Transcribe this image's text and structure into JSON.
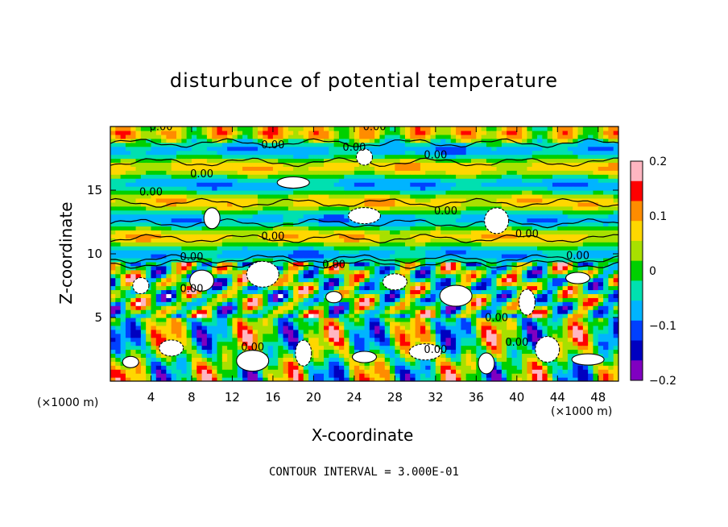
{
  "chart_data": {
    "type": "heatmap",
    "title": "disturbunce of potential temperature",
    "xlabel": "X-coordinate",
    "ylabel": "Z-coordinate",
    "x_unit": "(×1000 m)",
    "y_unit": "(×1000 m)",
    "x_ticks": [
      4,
      8,
      12,
      16,
      20,
      24,
      28,
      32,
      36,
      40,
      44,
      48
    ],
    "y_ticks": [
      5,
      10,
      15
    ],
    "xlim": [
      0,
      50
    ],
    "ylim": [
      0,
      20
    ],
    "colorbar_ticks": [
      "0.2",
      "0.1",
      "0",
      "-0.1",
      "-0.2"
    ],
    "colorbar_range": [
      -0.2,
      0.2
    ],
    "contour_label": "0.00",
    "colors": [
      "#ffb6c1",
      "#ff0000",
      "#ff8c00",
      "#ffd700",
      "#a8e000",
      "#00d000",
      "#00e0b0",
      "#00b4ff",
      "#0040ff",
      "#0000c0",
      "#8000c0"
    ],
    "footer": "CONTOUR INTERVAL = 3.000E-01"
  }
}
